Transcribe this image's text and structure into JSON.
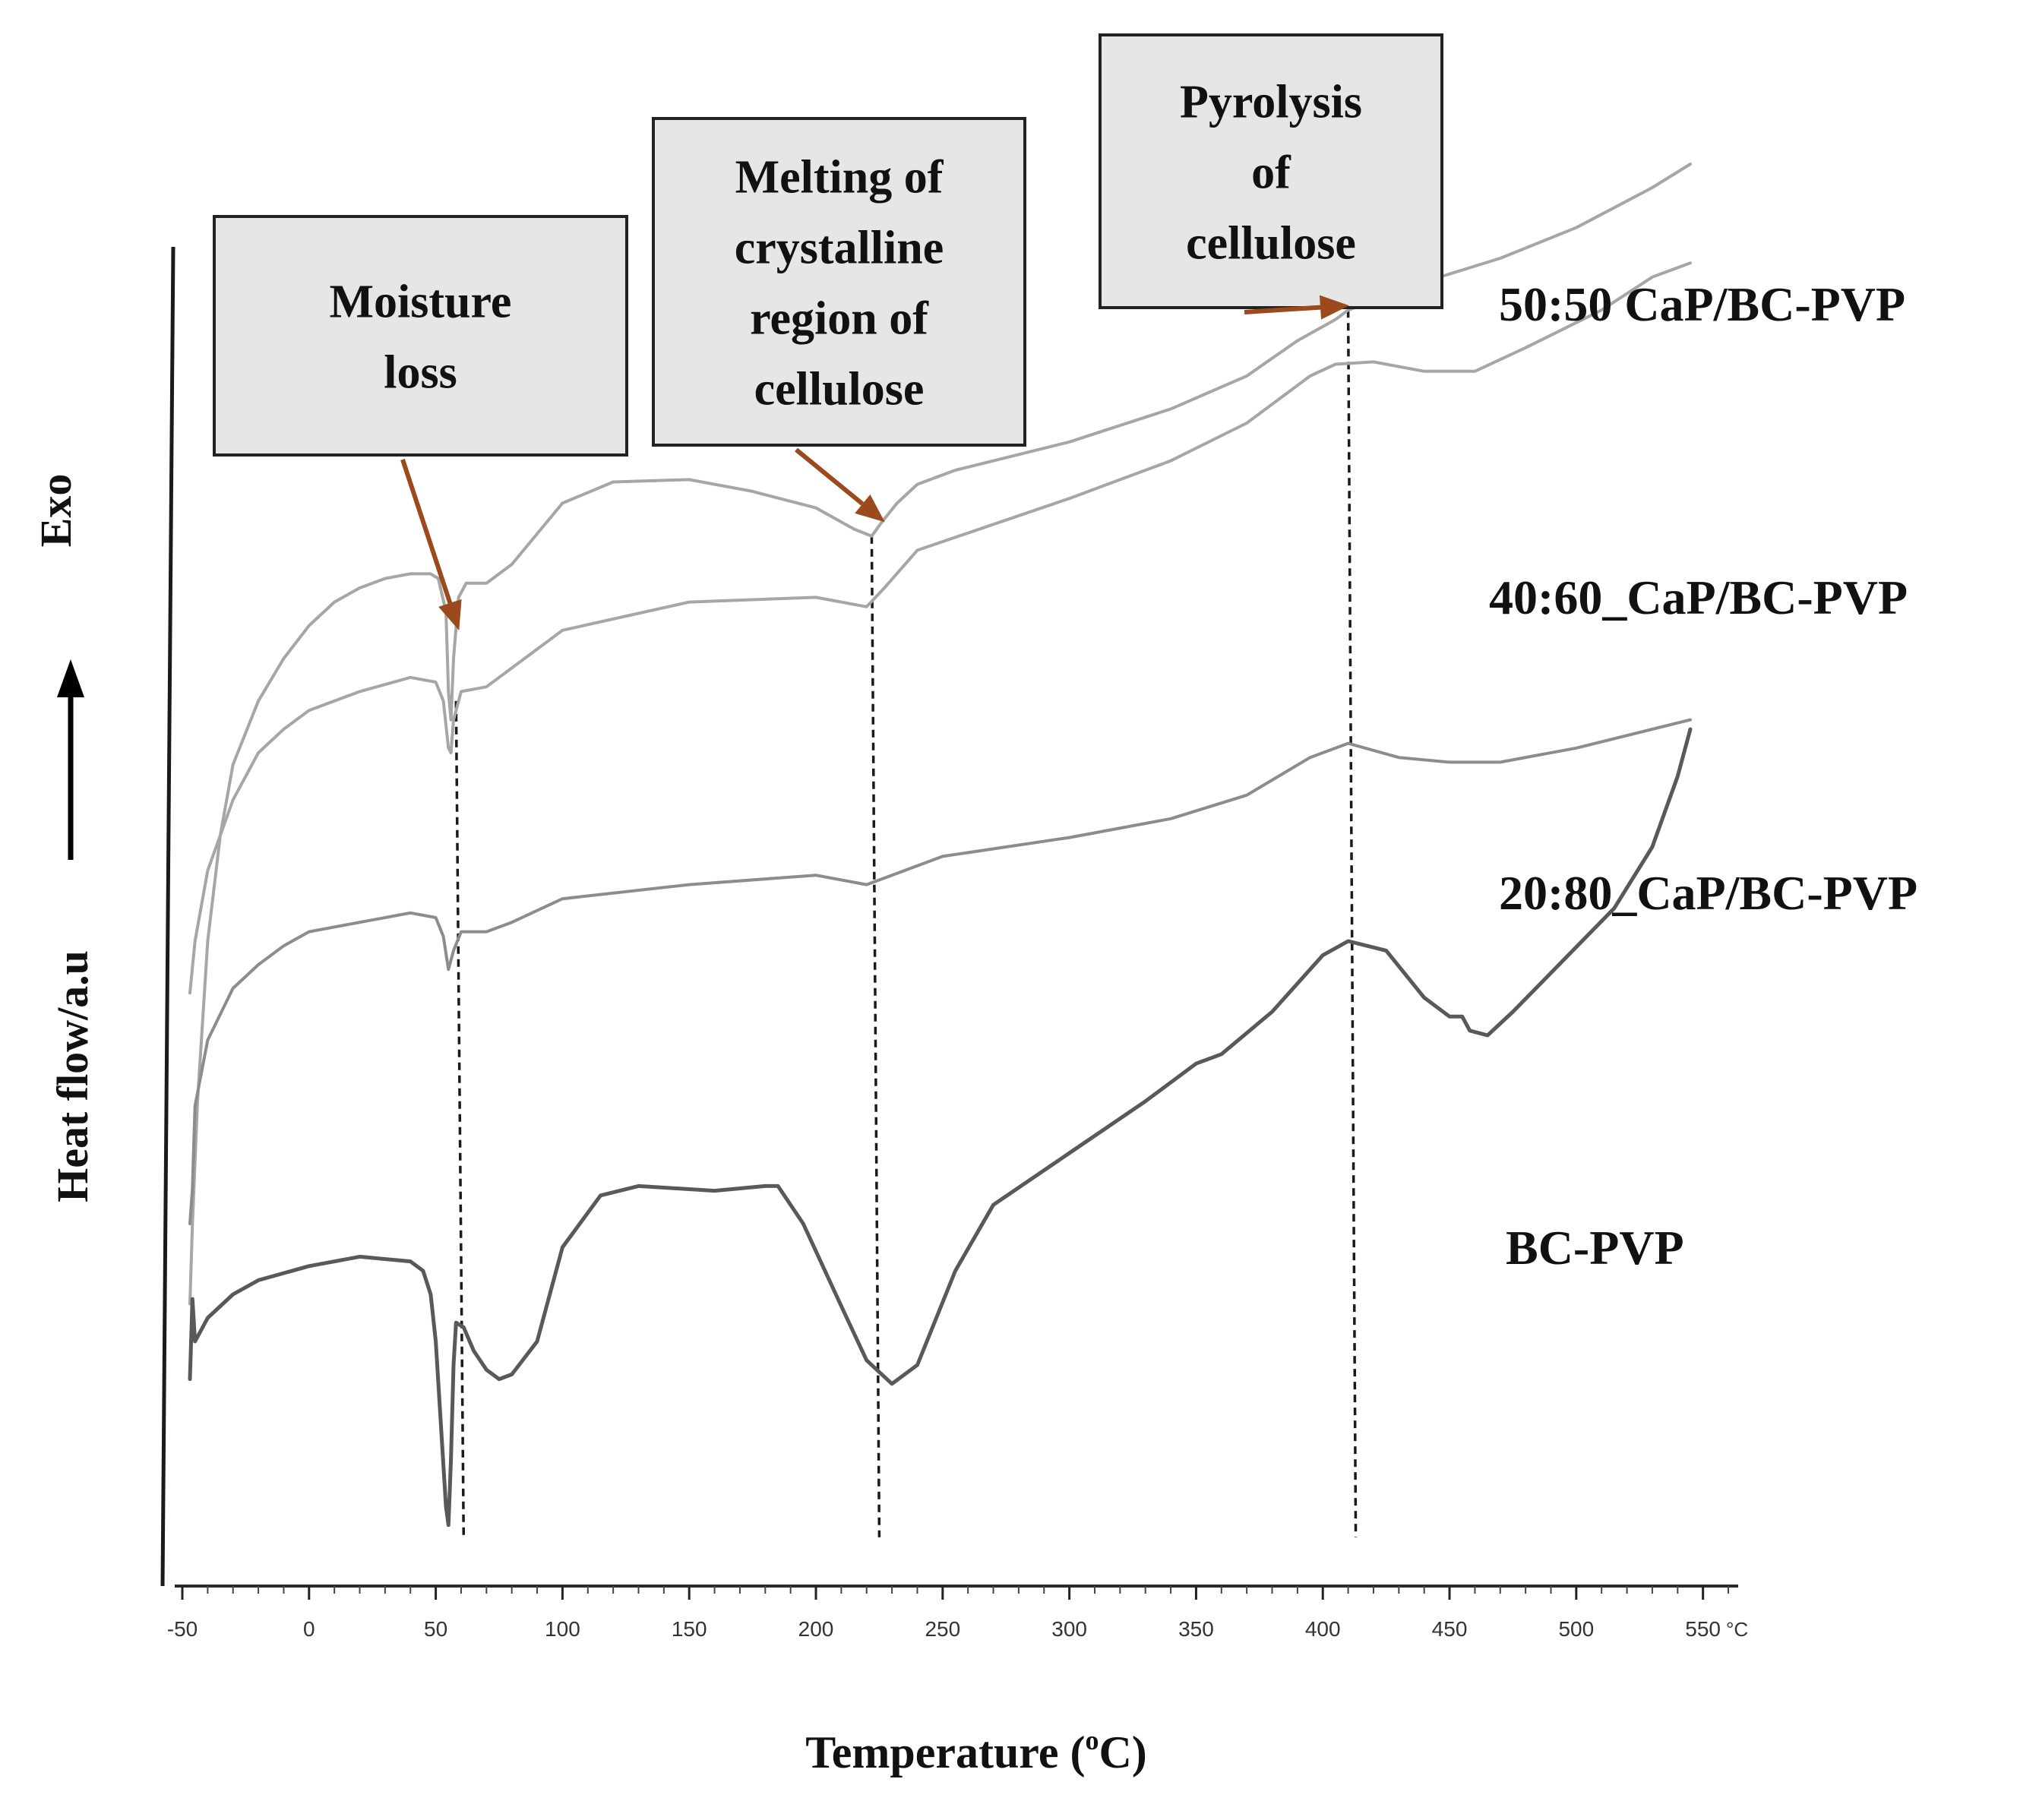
{
  "chart_data": {
    "type": "line",
    "title": "",
    "xlabel": "Temperature (",
    "xlabel_sup": "o",
    "xlabel_end": "C)",
    "ylabel": "Heat flow/a.u",
    "exo_label": "Exo",
    "x_unit_label": "°C",
    "xlim": [
      -50,
      560
    ],
    "xticks": [
      "-50",
      "0",
      "50",
      "100",
      "150",
      "200",
      "250",
      "300",
      "350",
      "400",
      "450",
      "500",
      "550"
    ],
    "grid": false,
    "line_color": "#a6a6a6",
    "line_color_dark": "#595959",
    "arrow_color": "#9a4a1c",
    "box_fill": "#e6e6e6",
    "series": [
      {
        "name": "50:50  CaP/BC-PVP",
        "color": "#a6a6a6",
        "label_position": "right-of-end",
        "points": [
          [
            -47,
            0.56
          ],
          [
            -46,
            0.9
          ],
          [
            -44,
            1.42
          ],
          [
            -40,
            2.1
          ],
          [
            -35,
            2.55
          ],
          [
            -30,
            2.85
          ],
          [
            -20,
            3.12
          ],
          [
            -10,
            3.3
          ],
          [
            0,
            3.44
          ],
          [
            10,
            3.54
          ],
          [
            20,
            3.6
          ],
          [
            30,
            3.64
          ],
          [
            40,
            3.66
          ],
          [
            48,
            3.66
          ],
          [
            51,
            3.64
          ],
          [
            54,
            3.5
          ],
          [
            55,
            3.16
          ],
          [
            56,
            3.04
          ],
          [
            57,
            3.3
          ],
          [
            59,
            3.56
          ],
          [
            62,
            3.62
          ],
          [
            70,
            3.62
          ],
          [
            80,
            3.7
          ],
          [
            100,
            3.96
          ],
          [
            120,
            4.05
          ],
          [
            150,
            4.06
          ],
          [
            175,
            4.01
          ],
          [
            200,
            3.94
          ],
          [
            215,
            3.85
          ],
          [
            222,
            3.82
          ],
          [
            226,
            3.88
          ],
          [
            232,
            3.96
          ],
          [
            240,
            4.04
          ],
          [
            255,
            4.1
          ],
          [
            300,
            4.22
          ],
          [
            340,
            4.36
          ],
          [
            370,
            4.5
          ],
          [
            390,
            4.65
          ],
          [
            405,
            4.74
          ],
          [
            410,
            4.78
          ],
          [
            420,
            4.82
          ],
          [
            440,
            4.9
          ],
          [
            470,
            5.0
          ],
          [
            500,
            5.13
          ],
          [
            530,
            5.3
          ],
          [
            545,
            5.4
          ]
        ]
      },
      {
        "name": "40:60_CaP/BC-PVP",
        "color": "#a6a6a6",
        "label_position": "right-of-end",
        "points": [
          [
            -47,
            1.88
          ],
          [
            -45,
            2.1
          ],
          [
            -40,
            2.4
          ],
          [
            -30,
            2.7
          ],
          [
            -20,
            2.9
          ],
          [
            -10,
            3.0
          ],
          [
            0,
            3.08
          ],
          [
            20,
            3.16
          ],
          [
            40,
            3.22
          ],
          [
            50,
            3.2
          ],
          [
            53,
            3.12
          ],
          [
            55,
            2.92
          ],
          [
            56,
            2.9
          ],
          [
            57,
            3.04
          ],
          [
            60,
            3.16
          ],
          [
            70,
            3.18
          ],
          [
            100,
            3.42
          ],
          [
            150,
            3.54
          ],
          [
            200,
            3.56
          ],
          [
            220,
            3.52
          ],
          [
            227,
            3.6
          ],
          [
            240,
            3.76
          ],
          [
            300,
            3.98
          ],
          [
            340,
            4.14
          ],
          [
            370,
            4.3
          ],
          [
            395,
            4.5
          ],
          [
            405,
            4.55
          ],
          [
            420,
            4.56
          ],
          [
            440,
            4.52
          ],
          [
            460,
            4.52
          ],
          [
            480,
            4.62
          ],
          [
            510,
            4.78
          ],
          [
            530,
            4.92
          ],
          [
            545,
            4.98
          ]
        ]
      },
      {
        "name": "20:80_CaP/BC-PVP",
        "color": "#8c8c8c",
        "label_position": "right-of-end",
        "points": [
          [
            -47,
            0.9
          ],
          [
            -46,
            1.05
          ],
          [
            -45,
            1.4
          ],
          [
            -40,
            1.68
          ],
          [
            -30,
            1.9
          ],
          [
            -20,
            2.0
          ],
          [
            -10,
            2.08
          ],
          [
            0,
            2.14
          ],
          [
            20,
            2.18
          ],
          [
            40,
            2.22
          ],
          [
            50,
            2.2
          ],
          [
            53,
            2.12
          ],
          [
            55,
            1.98
          ],
          [
            57,
            2.06
          ],
          [
            60,
            2.14
          ],
          [
            70,
            2.14
          ],
          [
            80,
            2.18
          ],
          [
            100,
            2.28
          ],
          [
            150,
            2.34
          ],
          [
            200,
            2.38
          ],
          [
            220,
            2.34
          ],
          [
            230,
            2.38
          ],
          [
            250,
            2.46
          ],
          [
            300,
            2.54
          ],
          [
            340,
            2.62
          ],
          [
            370,
            2.72
          ],
          [
            395,
            2.88
          ],
          [
            410,
            2.94
          ],
          [
            430,
            2.88
          ],
          [
            450,
            2.86
          ],
          [
            470,
            2.86
          ],
          [
            500,
            2.92
          ],
          [
            530,
            3.0
          ],
          [
            545,
            3.04
          ]
        ]
      },
      {
        "name": "BC-PVP",
        "color": "#595959",
        "label_position": "below-end",
        "points": [
          [
            -47,
            0.24
          ],
          [
            -46,
            0.58
          ],
          [
            -45,
            0.4
          ],
          [
            -40,
            0.5
          ],
          [
            -30,
            0.6
          ],
          [
            -20,
            0.66
          ],
          [
            0,
            0.72
          ],
          [
            20,
            0.76
          ],
          [
            40,
            0.74
          ],
          [
            45,
            0.7
          ],
          [
            48,
            0.6
          ],
          [
            50,
            0.4
          ],
          [
            52,
            0.05
          ],
          [
            54,
            -0.3
          ],
          [
            55,
            -0.38
          ],
          [
            56,
            -0.1
          ],
          [
            57,
            0.3
          ],
          [
            58,
            0.48
          ],
          [
            61,
            0.46
          ],
          [
            65,
            0.36
          ],
          [
            70,
            0.28
          ],
          [
            75,
            0.24
          ],
          [
            80,
            0.26
          ],
          [
            90,
            0.4
          ],
          [
            100,
            0.8
          ],
          [
            115,
            1.02
          ],
          [
            130,
            1.06
          ],
          [
            160,
            1.04
          ],
          [
            180,
            1.06
          ],
          [
            185,
            1.06
          ],
          [
            195,
            0.9
          ],
          [
            210,
            0.55
          ],
          [
            220,
            0.32
          ],
          [
            230,
            0.22
          ],
          [
            240,
            0.3
          ],
          [
            255,
            0.7
          ],
          [
            270,
            0.98
          ],
          [
            300,
            1.2
          ],
          [
            330,
            1.42
          ],
          [
            350,
            1.58
          ],
          [
            360,
            1.62
          ],
          [
            380,
            1.8
          ],
          [
            400,
            2.04
          ],
          [
            410,
            2.1
          ],
          [
            425,
            2.06
          ],
          [
            440,
            1.86
          ],
          [
            450,
            1.78
          ],
          [
            455,
            1.78
          ],
          [
            458,
            1.72
          ],
          [
            465,
            1.7
          ],
          [
            475,
            1.8
          ],
          [
            495,
            2.02
          ],
          [
            515,
            2.24
          ],
          [
            530,
            2.5
          ],
          [
            540,
            2.8
          ],
          [
            545,
            3.0
          ]
        ]
      }
    ],
    "dashed_lines": [
      {
        "x": 58,
        "top_series": "50:50  CaP/BC-PVP",
        "y_top": 3.12,
        "y_bottom": -0.38
      },
      {
        "x": 222,
        "top_series": "50:50  CaP/BC-PVP",
        "y_top": 3.82,
        "y_bottom": -0.38
      },
      {
        "x": 410,
        "top_series": "50:50  CaP/BC-PVP",
        "y_top": 4.78,
        "y_bottom": -0.38
      }
    ],
    "annotations": [
      {
        "lines": [
          "Moisture",
          "loss"
        ],
        "points_to_x": 55,
        "points_to_y": 3.4
      },
      {
        "lines": [
          "Melting of",
          "crystalline",
          "region of",
          "cellulose"
        ],
        "points_to_x": 220,
        "points_to_y": 3.86
      },
      {
        "lines": [
          "Pyrolysis",
          "of",
          "cellulose"
        ],
        "points_to_x": 405,
        "points_to_y": 4.78
      }
    ]
  }
}
